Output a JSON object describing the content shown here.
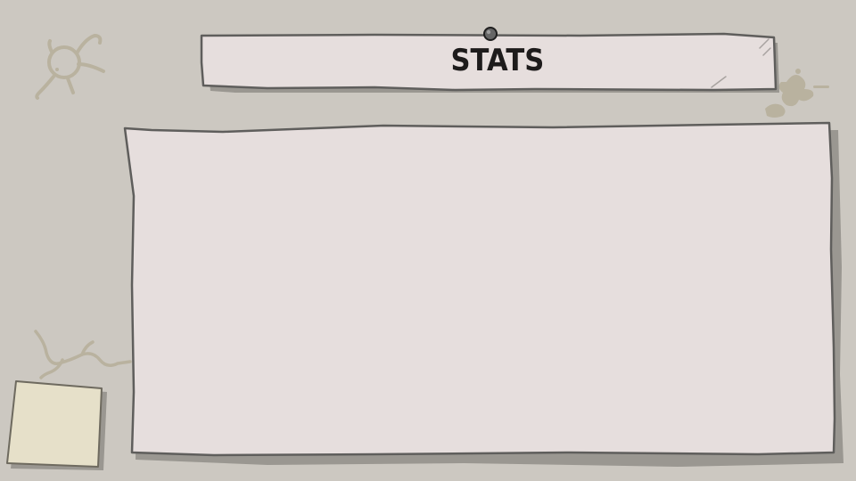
{
  "title": {
    "text": "STATS"
  },
  "colors": {
    "background": "#ccc8c1",
    "paper": "#e6dedd",
    "outline": "#5f5e5c",
    "shadow": "#9a9791",
    "sticky_note": "#e6e0c9",
    "doodle": "#b9b29f",
    "pin": "#444444"
  },
  "icons": {
    "top_left_doodle": "stick-figure-doodle-icon",
    "top_right_doodle": "splat-doodle-icon",
    "bottom_left_doodle": "squiggle-doodle-icon",
    "pin": "pushpin-icon"
  },
  "stats_panel": {
    "entries": []
  }
}
